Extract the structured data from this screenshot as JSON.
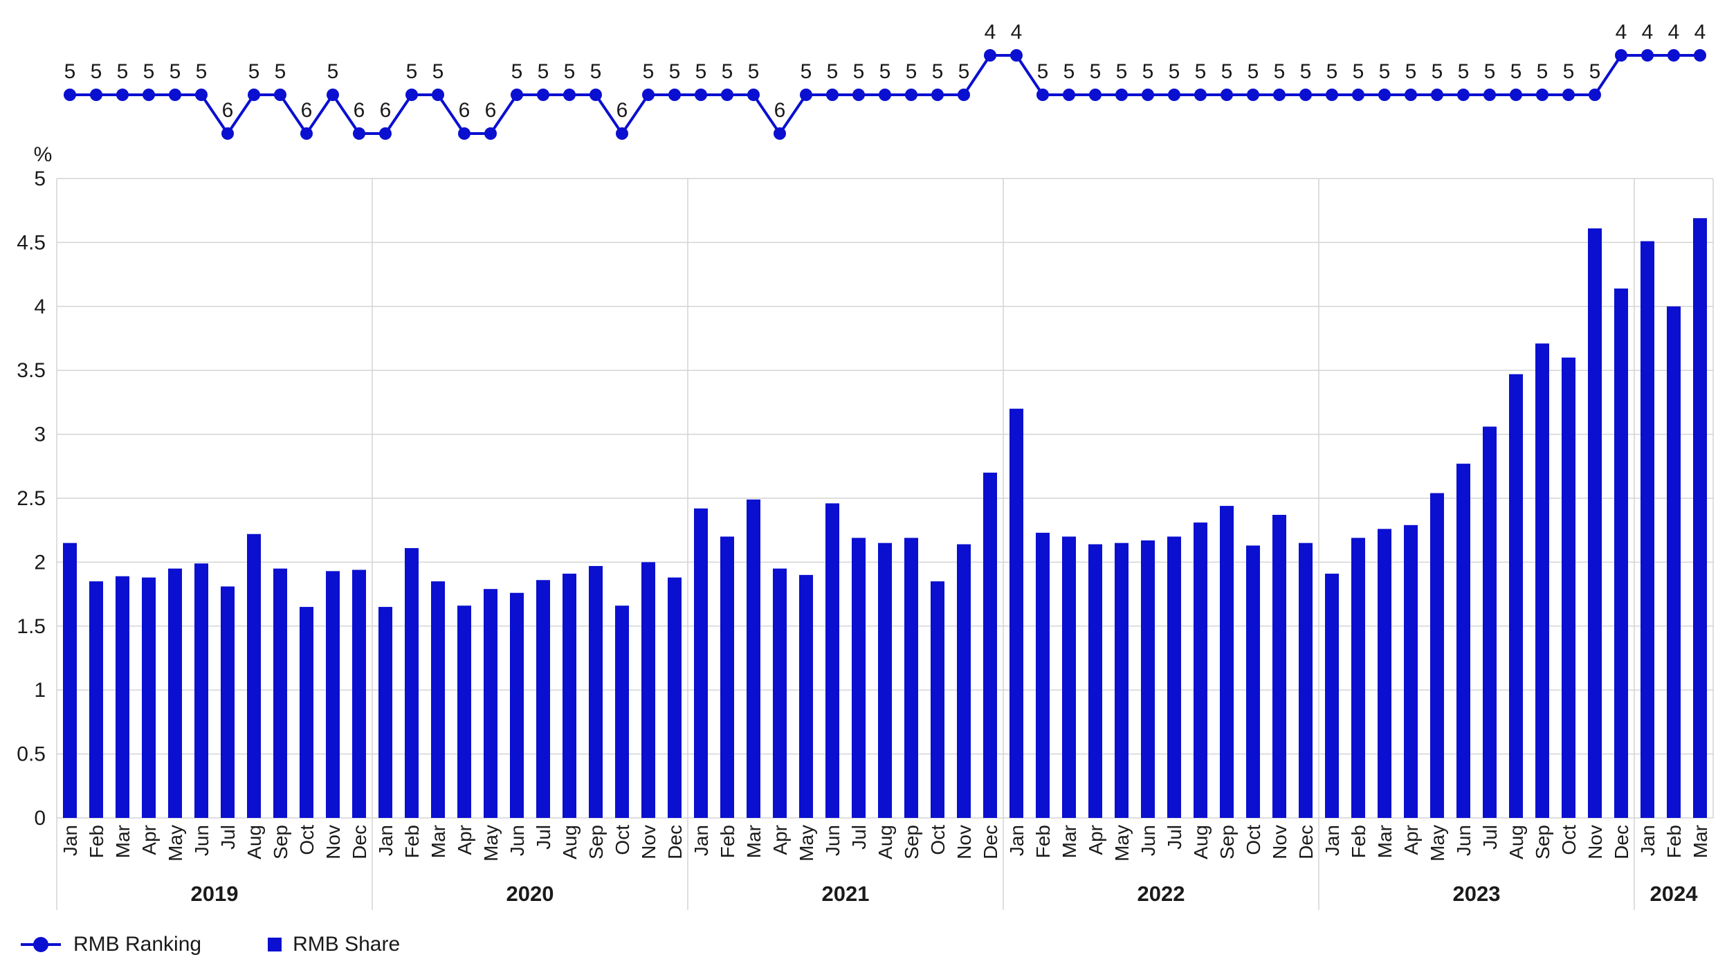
{
  "colors": {
    "accent": "#0a0fd0",
    "grid": "#d4d4d4",
    "text": "#1a1a1a"
  },
  "legend": {
    "ranking_label": "RMB Ranking",
    "share_label": "RMB Share"
  },
  "chart_data": {
    "type": "bar",
    "title": "",
    "ylabel": "%",
    "xlabel": "",
    "ylim": [
      0,
      5
    ],
    "yticks": [
      "0",
      "0.5",
      "1",
      "1.5",
      "2",
      "2.5",
      "3",
      "3.5",
      "4",
      "4.5",
      "5"
    ],
    "grid": true,
    "legend_position": "bottom-left",
    "years": [
      {
        "label": "2019",
        "months": 12
      },
      {
        "label": "2020",
        "months": 12
      },
      {
        "label": "2021",
        "months": 12
      },
      {
        "label": "2022",
        "months": 12
      },
      {
        "label": "2023",
        "months": 12
      },
      {
        "label": "2024",
        "months": 3
      }
    ],
    "categories": [
      "Jan",
      "Feb",
      "Mar",
      "Apr",
      "May",
      "Jun",
      "Jul",
      "Aug",
      "Sep",
      "Oct",
      "Nov",
      "Dec",
      "Jan",
      "Feb",
      "Mar",
      "Apr",
      "May",
      "Jun",
      "Jul",
      "Aug",
      "Sep",
      "Oct",
      "Nov",
      "Dec",
      "Jan",
      "Feb",
      "Mar",
      "Apr",
      "May",
      "Jun",
      "Jul",
      "Aug",
      "Sep",
      "Oct",
      "Nov",
      "Dec",
      "Jan",
      "Feb",
      "Mar",
      "Apr",
      "May",
      "Jun",
      "Jul",
      "Aug",
      "Sep",
      "Oct",
      "Nov",
      "Dec",
      "Jan",
      "Feb",
      "Mar",
      "Apr",
      "May",
      "Jun",
      "Jul",
      "Aug",
      "Sep",
      "Oct",
      "Nov",
      "Dec",
      "Jan",
      "Feb",
      "Mar"
    ],
    "series": [
      {
        "name": "RMB Share",
        "type": "bar",
        "values": [
          2.15,
          1.85,
          1.89,
          1.88,
          1.95,
          1.99,
          1.81,
          2.22,
          1.95,
          1.65,
          1.93,
          1.94,
          1.65,
          2.11,
          1.85,
          1.66,
          1.79,
          1.76,
          1.86,
          1.91,
          1.97,
          1.66,
          2.0,
          1.88,
          2.42,
          2.2,
          2.49,
          1.95,
          1.9,
          2.46,
          2.19,
          2.15,
          2.19,
          1.85,
          2.14,
          2.7,
          3.2,
          2.23,
          2.2,
          2.14,
          2.15,
          2.17,
          2.2,
          2.31,
          2.44,
          2.13,
          2.37,
          2.15,
          1.91,
          2.19,
          2.26,
          2.29,
          2.54,
          2.77,
          3.06,
          3.47,
          3.71,
          3.6,
          4.61,
          4.14,
          4.51,
          4.0,
          4.69
        ]
      },
      {
        "name": "RMB Ranking",
        "type": "line",
        "values": [
          5,
          5,
          5,
          5,
          5,
          5,
          6,
          5,
          5,
          6,
          5,
          6,
          6,
          5,
          5,
          6,
          6,
          5,
          5,
          5,
          5,
          6,
          5,
          5,
          5,
          5,
          5,
          6,
          5,
          5,
          5,
          5,
          5,
          5,
          5,
          4,
          4,
          5,
          5,
          5,
          5,
          5,
          5,
          5,
          5,
          5,
          5,
          5,
          5,
          5,
          5,
          5,
          5,
          5,
          5,
          5,
          5,
          5,
          5,
          4,
          4,
          4,
          4
        ]
      }
    ]
  }
}
